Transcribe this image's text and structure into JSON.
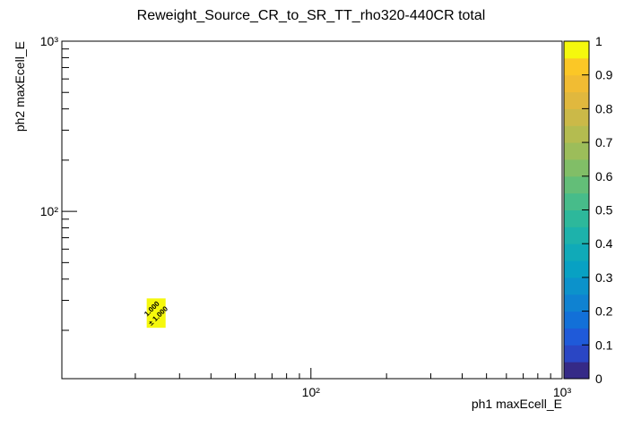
{
  "chart_data": {
    "type": "heatmap",
    "title": "Reweight_Source_CR_to_SR_TT_rho320-440CR total",
    "x_label": "ph1 maxEcell_E",
    "y_label": "ph2 maxEcell_E",
    "log_x": true,
    "log_y": true,
    "xlim": [
      10.2,
      1000
    ],
    "ylim": [
      10.4,
      1000
    ],
    "xticks": [
      {
        "value": 100,
        "label": "10²"
      },
      {
        "value": 1000,
        "label": "10³"
      }
    ],
    "yticks": [
      {
        "value": 100,
        "label": "10²"
      },
      {
        "value": 1000,
        "label": "10³"
      }
    ],
    "xminor": [
      20,
      30,
      40,
      50,
      60,
      70,
      80,
      90,
      200,
      300,
      400,
      500,
      600,
      700,
      800,
      900
    ],
    "yminor": [
      20,
      30,
      40,
      50,
      60,
      70,
      80,
      90,
      200,
      300,
      400,
      500,
      600,
      700,
      800,
      900
    ],
    "xbins": [
      22.2,
      26.4
    ],
    "ybins": [
      20.7,
      30.8
    ],
    "values": [
      [
        1
      ]
    ],
    "value_labels": [
      [
        "1.000"
      ]
    ],
    "errors": [
      [
        1
      ]
    ],
    "error_labels": [
      [
        "± 1.000"
      ]
    ],
    "zlim": [
      0,
      1
    ],
    "zticks": [
      0,
      0.1,
      0.2,
      0.3,
      0.4,
      0.5,
      0.6,
      0.7,
      0.8,
      0.9,
      1
    ],
    "palette": [
      "#352a87",
      "#2a46c4",
      "#1f5ad9",
      "#1270d8",
      "#0f82d1",
      "#0c92cb",
      "#08a1c3",
      "#10aab8",
      "#1db2ab",
      "#2db89b",
      "#47bc8a",
      "#63be78",
      "#81be67",
      "#9cbd5a",
      "#b4bc50",
      "#cbb948",
      "#e0b83e",
      "#f1bc33",
      "#fbc726",
      "#f5f80d"
    ]
  }
}
